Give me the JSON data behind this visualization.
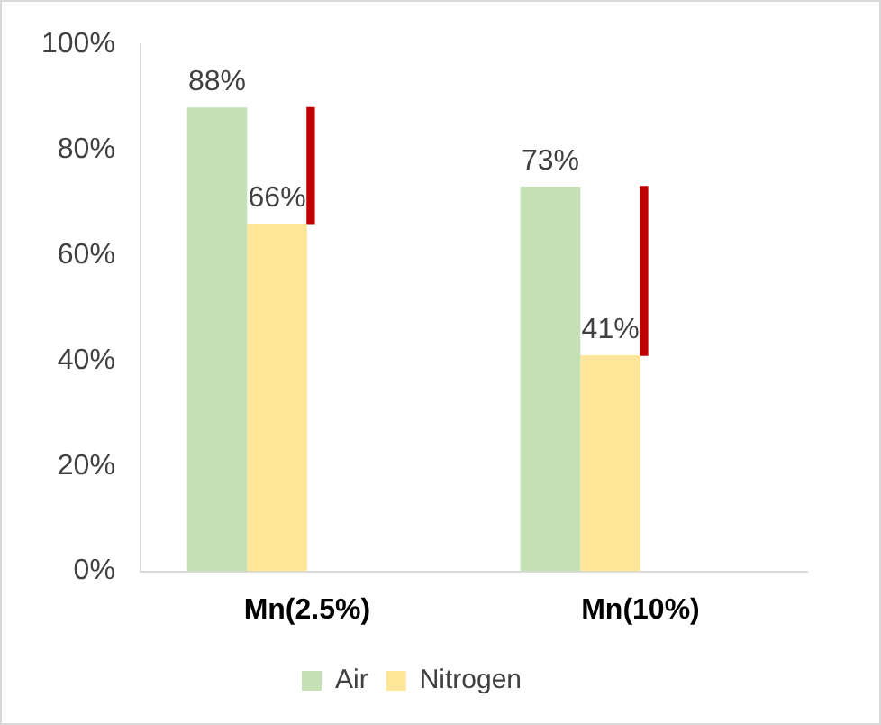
{
  "chart_data": {
    "type": "bar",
    "categories": [
      "Mn(2.5%)",
      "Mn(10%)"
    ],
    "series": [
      {
        "name": "Air",
        "color": "#c5e0b4",
        "values": [
          88,
          73
        ],
        "value_labels": [
          "88%",
          "73%"
        ]
      },
      {
        "name": "Nitrogen",
        "color": "#ffe699",
        "values": [
          66,
          41
        ],
        "value_labels": [
          "66%",
          "41%"
        ]
      },
      {
        "type": "bar",
        "color": "#c00000",
        "values": [
          22,
          32
        ],
        "base": [
          66,
          41
        ]
      }
    ],
    "ylim": [
      0,
      100
    ],
    "yticks": [
      {
        "value": 0,
        "label": "0%"
      },
      {
        "value": 20,
        "label": "20%"
      },
      {
        "value": 40,
        "label": "40%"
      },
      {
        "value": 60,
        "label": "60%"
      },
      {
        "value": 80,
        "label": "80%"
      },
      {
        "value": 100,
        "label": "100%"
      }
    ],
    "grid": false,
    "legend": "bottom"
  }
}
